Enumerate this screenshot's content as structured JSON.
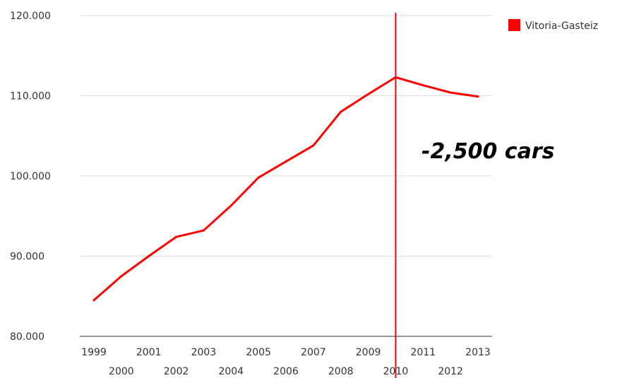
{
  "chart_data": {
    "type": "line",
    "x": [
      "1999",
      "2000",
      "2001",
      "2002",
      "2003",
      "2004",
      "2005",
      "2006",
      "2007",
      "2008",
      "2009",
      "2010",
      "2011",
      "2012",
      "2013"
    ],
    "series": [
      {
        "name": "Vitoria-Gasteiz",
        "color": "#ff0000",
        "values": [
          84500,
          87500,
          90000,
          92400,
          93200,
          96300,
          99800,
          101800,
          103800,
          108000,
          110200,
          112300,
          111300,
          110400,
          109900
        ]
      }
    ],
    "yticks": [
      80000,
      90000,
      100000,
      110000,
      120000
    ],
    "ytick_labels": [
      "80.000",
      "90.000",
      "100.000",
      "110.000",
      "120.000"
    ],
    "ylim": [
      80000,
      120000
    ],
    "marker_line": {
      "x": "2010",
      "color": "#ff0000"
    },
    "annotation": "-2,500 cars",
    "title": "",
    "xlabel": "",
    "ylabel": "",
    "grid": true,
    "legend": "top-right"
  }
}
